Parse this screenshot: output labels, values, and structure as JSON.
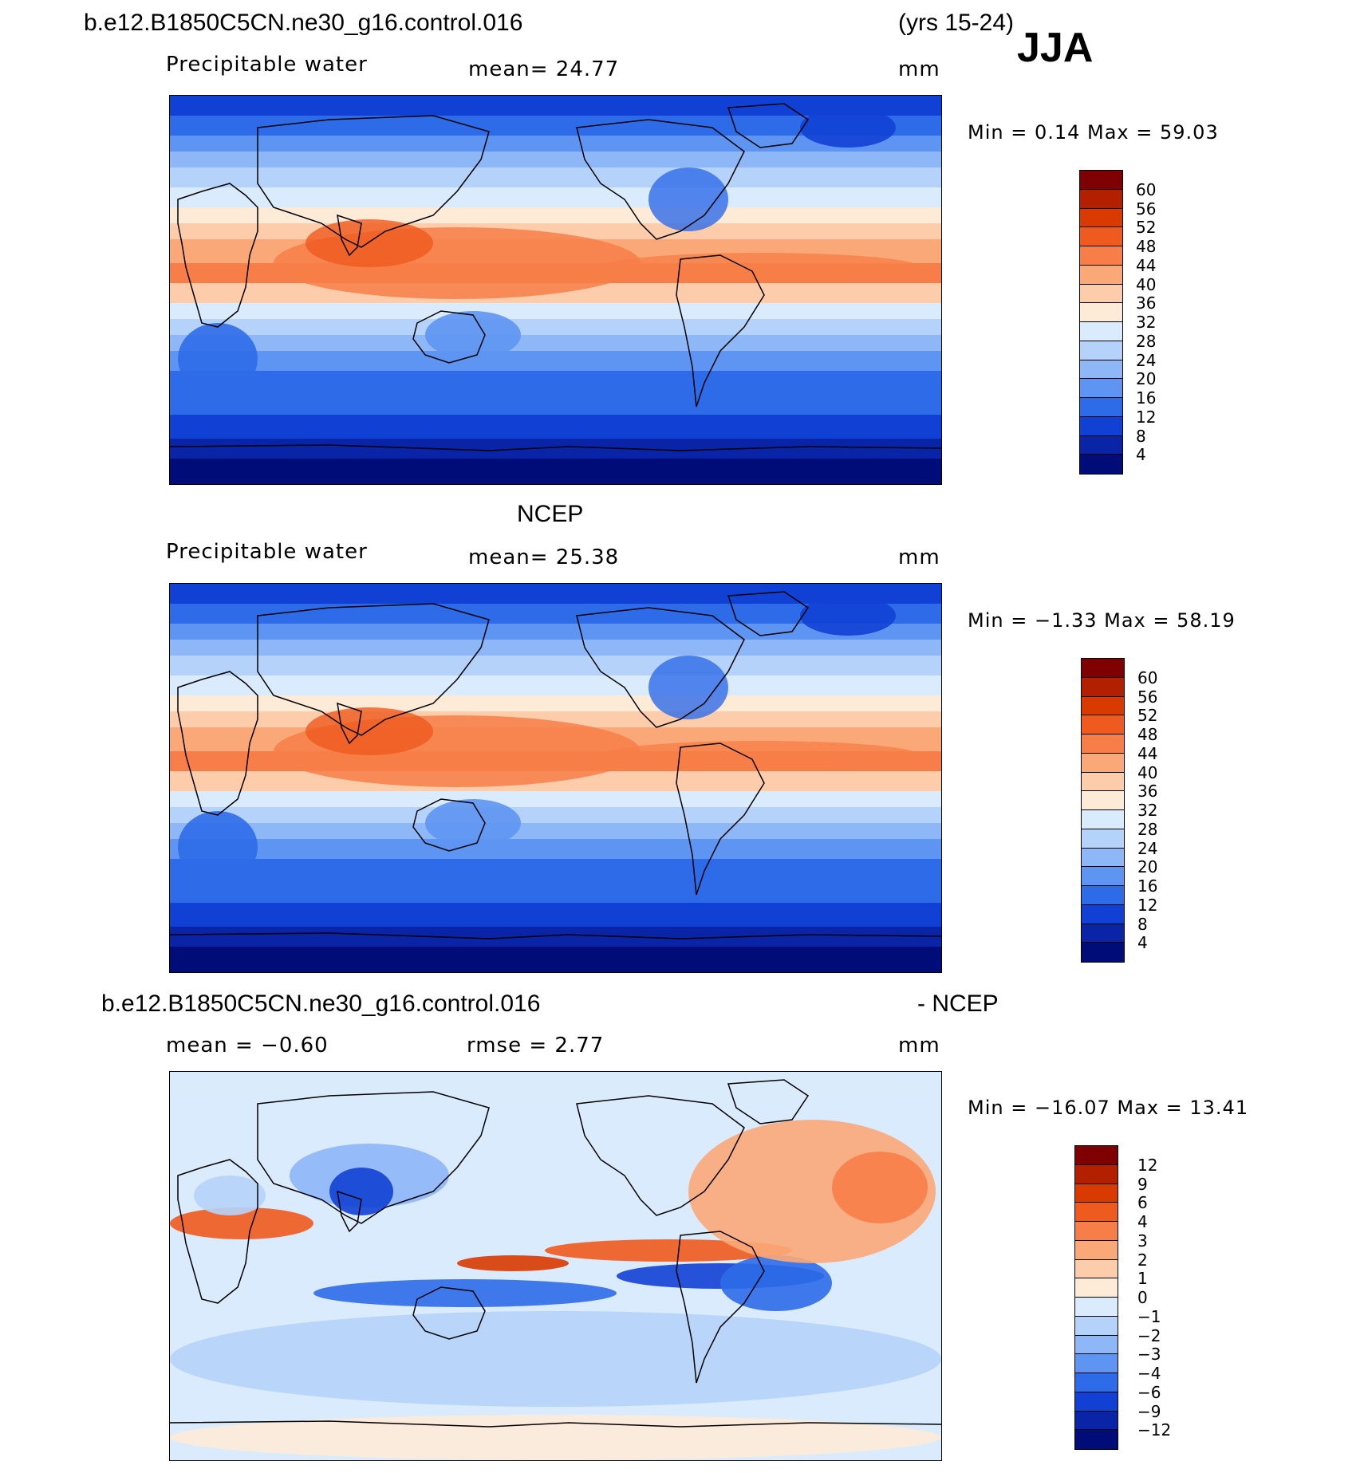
{
  "header": {
    "case_name": "b.e12.B1850C5CN.ne30_g16.control.016",
    "years": "(yrs 15-24)",
    "season": "JJA"
  },
  "panels": [
    {
      "id": "model",
      "title": "",
      "variable": "Precipitable water",
      "stat_text": "mean=   24.77",
      "units": "mm",
      "minmax": "Min =    0.14 Max =   59.03",
      "levels": [
        "60",
        "56",
        "52",
        "48",
        "44",
        "40",
        "36",
        "32",
        "28",
        "24",
        "20",
        "16",
        "12",
        "8",
        "4"
      ],
      "colors": [
        "#7f0000",
        "#b22000",
        "#d83a00",
        "#ef5a1e",
        "#f77e48",
        "#fba878",
        "#fdcdab",
        "#fdebd8",
        "#d9ebfc",
        "#b5d3fa",
        "#8db7f7",
        "#5e95f2",
        "#2e6be8",
        "#1141d4",
        "#0a24a8",
        "#000c78"
      ]
    },
    {
      "id": "obs",
      "title": "NCEP",
      "variable": "Precipitable water",
      "stat_text": "mean=   25.38",
      "units": "mm",
      "minmax": "Min =   −1.33 Max =   58.19",
      "levels": [
        "60",
        "56",
        "52",
        "48",
        "44",
        "40",
        "36",
        "32",
        "28",
        "24",
        "20",
        "16",
        "12",
        "8",
        "4"
      ],
      "colors": [
        "#7f0000",
        "#b22000",
        "#d83a00",
        "#ef5a1e",
        "#f77e48",
        "#fba878",
        "#fdcdab",
        "#fdebd8",
        "#d9ebfc",
        "#b5d3fa",
        "#8db7f7",
        "#5e95f2",
        "#2e6be8",
        "#1141d4",
        "#0a24a8",
        "#000c78"
      ]
    },
    {
      "id": "diff",
      "title_left": "b.e12.B1850C5CN.ne30_g16.control.016",
      "title_right": "- NCEP",
      "stat_left": "mean =   −0.60",
      "stat_mid": "rmse =    2.77",
      "units": "mm",
      "minmax": "Min = −16.07 Max =   13.41",
      "levels": [
        "12",
        "9",
        "6",
        "4",
        "3",
        "2",
        "1",
        "0",
        "−1",
        "−2",
        "−3",
        "−4",
        "−6",
        "−9",
        "−12"
      ],
      "colors": [
        "#7f0000",
        "#b22000",
        "#d83a00",
        "#ef5a1e",
        "#f77e48",
        "#fba878",
        "#fdcdab",
        "#fdebd8",
        "#d9ebfc",
        "#b5d3fa",
        "#8db7f7",
        "#5e95f2",
        "#2e6be8",
        "#1141d4",
        "#0a24a8",
        "#000c78"
      ]
    }
  ]
}
